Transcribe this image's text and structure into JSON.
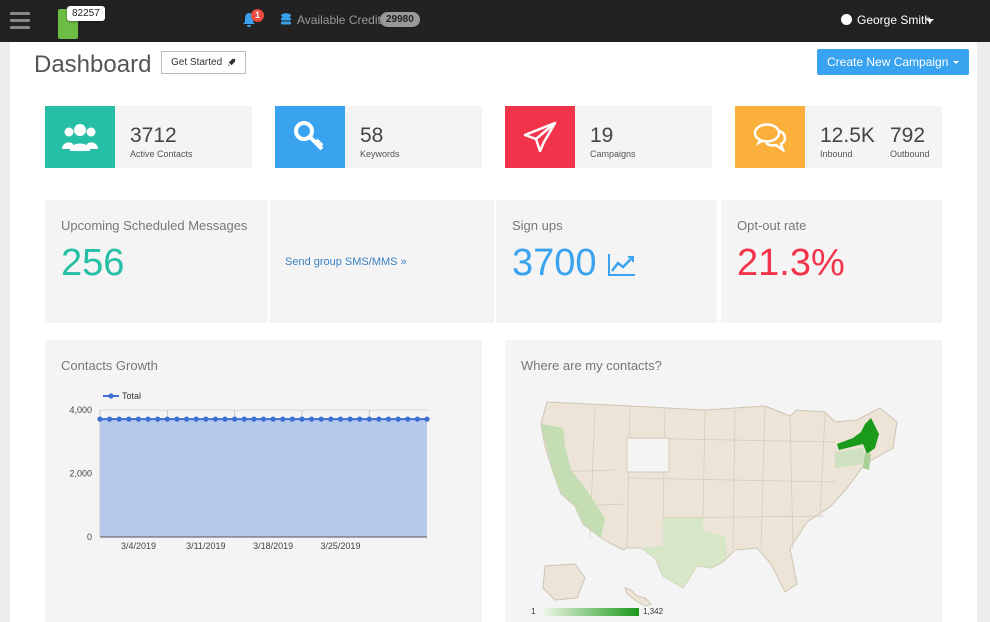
{
  "topbar": {
    "logo_badge": "82257",
    "notification_count": "1",
    "credits_label": "Available Credits",
    "credits_value": "29980",
    "user_name": "George Smith"
  },
  "page": {
    "title": "Dashboard",
    "get_started": "Get Started",
    "create_campaign": "Create New Campaign"
  },
  "stats": [
    {
      "value": "3712",
      "label": "Active Contacts",
      "color": "#26bfa6",
      "icon": "users-icon"
    },
    {
      "value": "58",
      "label": "Keywords",
      "color": "#3aa3ef",
      "icon": "key-icon"
    },
    {
      "value": "19",
      "label": "Campaigns",
      "color": "#f2344b",
      "icon": "paper-plane-icon"
    },
    {
      "value": "12.5K",
      "label": "Inbound",
      "value2": "792",
      "label2": "Outbound",
      "color": "#fbb03b",
      "icon": "comments-icon"
    }
  ],
  "scheduled": {
    "title": "Upcoming Scheduled Messages",
    "value": "256",
    "link": "Send group SMS/MMS »"
  },
  "signups": {
    "title": "Sign ups",
    "value": "3700"
  },
  "optout": {
    "title": "Opt-out rate",
    "value": "21.3%"
  },
  "growth": {
    "title": "Contacts Growth"
  },
  "map": {
    "title": "Where are my contacts?",
    "legend_min": "1",
    "legend_max": "1,342"
  },
  "chart_data": {
    "type": "area",
    "series": [
      {
        "name": "Total",
        "values": [
          3712,
          3712,
          3712,
          3712,
          3712,
          3712,
          3712,
          3712,
          3712,
          3712,
          3712,
          3712,
          3712,
          3712,
          3712,
          3712,
          3712,
          3712,
          3712,
          3712,
          3712,
          3712,
          3712,
          3712,
          3712,
          3712,
          3712,
          3712,
          3712,
          3712,
          3712,
          3712,
          3712,
          3712,
          3712
        ]
      }
    ],
    "y_ticks": [
      "4,000",
      "2,000",
      "0"
    ],
    "x_ticks": [
      "3/4/2019",
      "3/11/2019",
      "3/18/2019",
      "3/25/2019"
    ],
    "ylim": [
      0,
      4000
    ]
  }
}
